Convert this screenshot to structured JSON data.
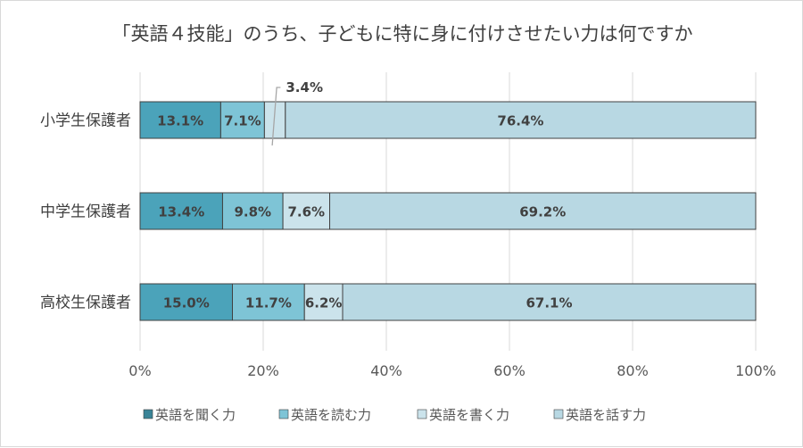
{
  "chart_data": {
    "type": "bar",
    "orientation": "horizontal",
    "stacked": true,
    "title": "「英語４技能」のうち、子どもに特に身に付けさせたい力は何ですか",
    "categories": [
      "小学生保護者",
      "中学生保護者",
      "高校生保護者"
    ],
    "series": [
      {
        "name": "英語を聞く力",
        "values": [
          13.1,
          13.4,
          15.0
        ],
        "color": "#4BA3BA",
        "legend_color": "#3A8497"
      },
      {
        "name": "英語を読む力",
        "values": [
          7.1,
          9.8,
          11.7
        ],
        "color": "#7EC4D6"
      },
      {
        "name": "英語を書く力",
        "values": [
          3.4,
          7.6,
          6.2
        ],
        "color": "#CBE3EB"
      },
      {
        "name": "英語を話す力",
        "values": [
          76.4,
          69.2,
          67.1
        ],
        "color": "#B8D8E3"
      }
    ],
    "data_labels": [
      [
        "13.1%",
        "7.1%",
        "3.4%",
        "76.4%"
      ],
      [
        "13.4%",
        "9.8%",
        "7.6%",
        "69.2%"
      ],
      [
        "15.0%",
        "11.7%",
        "6.2%",
        "67.1%"
      ]
    ],
    "xlim": [
      0,
      100
    ],
    "xticks": [
      "0%",
      "20%",
      "40%",
      "60%",
      "80%",
      "100%"
    ],
    "grid": true,
    "legend_position": "bottom"
  }
}
